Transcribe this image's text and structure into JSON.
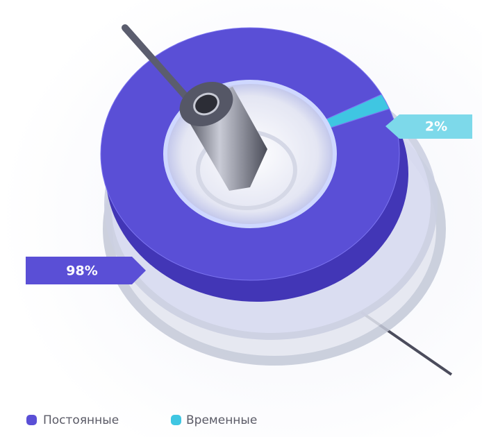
{
  "chart_data": {
    "type": "donut",
    "categories": [
      "Постоянные",
      "Временные"
    ],
    "values": [
      98,
      2
    ],
    "value_labels": [
      "98%",
      "2%"
    ],
    "colors": [
      "#5a4fd6",
      "#3fc6e2"
    ]
  }
}
